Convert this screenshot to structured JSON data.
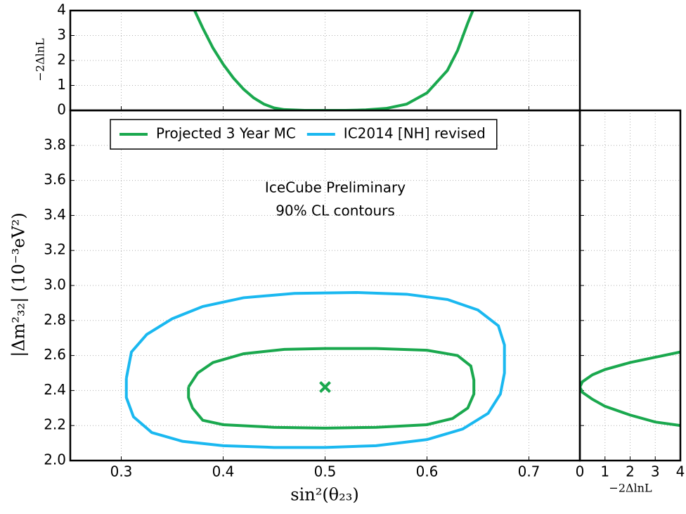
{
  "chart_data": [
    {
      "type": "line",
      "xlabel": "sin²(θ₂₃)",
      "ylabel": "|Δm²₃₂| (10⁻³eV²)",
      "annotations": [
        "IceCube Preliminary",
        "90% CL contours"
      ],
      "xlim": [
        0.25,
        0.75
      ],
      "ylim": [
        2.0,
        4.0
      ],
      "xticks": [
        0.3,
        0.4,
        0.5,
        0.6,
        0.7
      ],
      "yticks": [
        {
          "value": 2.0,
          "label": "2.0"
        },
        2.2,
        2.4,
        2.6,
        2.8,
        {
          "value": 3.0,
          "label": "3.0"
        },
        3.2,
        3.4,
        3.6,
        3.8
      ],
      "grid": true,
      "legend": "upper center",
      "series": [
        {
          "name": "Projected 3 Year MC",
          "color": "#1aa84e",
          "x": [
            0.366,
            0.375,
            0.39,
            0.42,
            0.46,
            0.5,
            0.55,
            0.6,
            0.63,
            0.643,
            0.646,
            0.646,
            0.64,
            0.625,
            0.6,
            0.55,
            0.5,
            0.45,
            0.4,
            0.38,
            0.37,
            0.366,
            0.366
          ],
          "values": [
            2.42,
            2.5,
            2.56,
            2.61,
            2.635,
            2.64,
            2.64,
            2.63,
            2.6,
            2.54,
            2.46,
            2.38,
            2.3,
            2.24,
            2.205,
            2.19,
            2.185,
            2.19,
            2.205,
            2.23,
            2.3,
            2.36,
            2.42
          ]
        },
        {
          "name": "IC2014 [NH] revised",
          "color": "#1ab8f0",
          "x": [
            0.305,
            0.31,
            0.325,
            0.35,
            0.38,
            0.42,
            0.47,
            0.53,
            0.58,
            0.62,
            0.65,
            0.67,
            0.676,
            0.676,
            0.672,
            0.66,
            0.635,
            0.6,
            0.55,
            0.5,
            0.45,
            0.4,
            0.36,
            0.33,
            0.312,
            0.305,
            0.305
          ],
          "values": [
            2.47,
            2.62,
            2.72,
            2.81,
            2.88,
            2.93,
            2.955,
            2.96,
            2.95,
            2.92,
            2.86,
            2.77,
            2.66,
            2.5,
            2.38,
            2.27,
            2.18,
            2.12,
            2.085,
            2.075,
            2.075,
            2.085,
            2.11,
            2.16,
            2.25,
            2.36,
            2.47
          ]
        }
      ],
      "points": [
        {
          "x": 0.5,
          "y": 2.42,
          "color": "#1aa84e",
          "marker": "x"
        }
      ]
    },
    {
      "type": "line",
      "ylabel": "−2ΔlnL",
      "xlim": [
        0.25,
        0.75
      ],
      "ylim": [
        0,
        4
      ],
      "yticks": [
        0,
        1,
        2,
        3,
        4
      ],
      "grid": true,
      "series": [
        {
          "color": "#1aa84e",
          "x": [
            0.372,
            0.38,
            0.39,
            0.4,
            0.41,
            0.42,
            0.43,
            0.44,
            0.45,
            0.46,
            0.48,
            0.5,
            0.52,
            0.54,
            0.56,
            0.58,
            0.6,
            0.62,
            0.63,
            0.64,
            0.645
          ],
          "values": [
            4,
            3.3,
            2.5,
            1.85,
            1.3,
            0.85,
            0.5,
            0.25,
            0.1,
            0.03,
            0,
            0,
            0,
            0.02,
            0.08,
            0.25,
            0.7,
            1.6,
            2.4,
            3.5,
            4
          ]
        }
      ]
    },
    {
      "type": "line",
      "xlabel": "−2ΔlnL",
      "xlim": [
        0,
        4
      ],
      "ylim": [
        2.0,
        4.0
      ],
      "xticks": [
        0,
        1,
        2,
        3,
        4
      ],
      "grid": true,
      "series": [
        {
          "color": "#1aa84e",
          "x": [
            4,
            3,
            2,
            1,
            0.5,
            0.1,
            0,
            0.1,
            0.5,
            1,
            2,
            3,
            4
          ],
          "values": [
            2.62,
            2.59,
            2.56,
            2.52,
            2.49,
            2.45,
            2.42,
            2.39,
            2.35,
            2.31,
            2.26,
            2.22,
            2.2
          ]
        }
      ]
    }
  ]
}
